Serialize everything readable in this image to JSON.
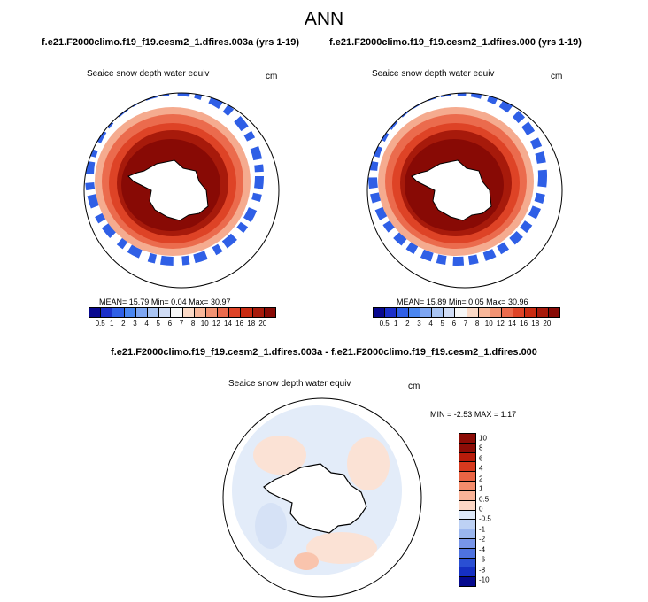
{
  "title": "ANN",
  "panels": [
    {
      "title": "f.e21.F2000climo.f19_f19.cesm2_1.dfires.003a (yrs 1-19)",
      "variable": "Seaice snow depth water equiv",
      "units": "cm",
      "mean_label": "MEAN=",
      "mean": "15.79",
      "min_label": "Min=",
      "min": "0.04",
      "max_label": "Max=",
      "max": "30.97"
    },
    {
      "title": "f.e21.F2000climo.f19_f19.cesm2_1.dfires.000 (yrs 1-19)",
      "variable": "Seaice snow depth water equiv",
      "units": "cm",
      "mean_label": "MEAN=",
      "mean": "15.89",
      "min_label": "Min=",
      "min": "0.05",
      "max_label": "Max=",
      "max": "30.96"
    }
  ],
  "diff": {
    "title": "f.e21.F2000climo.f19_f19.cesm2_1.dfires.003a - f.e21.F2000climo.f19_f19.cesm2_1.dfires.000",
    "variable": "Seaice snow depth water equiv",
    "units": "cm",
    "min_label": "MIN =",
    "min": "-2.53",
    "max_label": "MAX =",
    "max": "1.17"
  },
  "colorbar_main": {
    "colors": [
      "#08088f",
      "#1b2fc9",
      "#2f5fe6",
      "#4a86f0",
      "#7ea6f2",
      "#a9c4f3",
      "#d0dcf5",
      "#f6f6f6",
      "#fbd9c6",
      "#f8b79a",
      "#f29373",
      "#eb6b4d",
      "#de4326",
      "#c92b11",
      "#a71a0b",
      "#880a05"
    ],
    "labels": [
      "0.5",
      "1",
      "2",
      "3",
      "4",
      "5",
      "6",
      "7",
      "8",
      "10",
      "12",
      "14",
      "16",
      "18",
      "20"
    ]
  },
  "colorbar_diff": {
    "colors": [
      "#8c0c06",
      "#b81c0b",
      "#d7391e",
      "#ea6444",
      "#f58d6c",
      "#f9b398",
      "#fcd7c6",
      "#dde8f8",
      "#bdd1f4",
      "#9bb6ee",
      "#7895e8",
      "#4e72df",
      "#2a4fd3",
      "#1530c2",
      "#050a8e"
    ],
    "labels": [
      "10",
      "8",
      "6",
      "4",
      "2",
      "1",
      "0.5",
      "0",
      "-0.5",
      "-1",
      "-2",
      "-4",
      "-6",
      "-8",
      "-10"
    ]
  }
}
